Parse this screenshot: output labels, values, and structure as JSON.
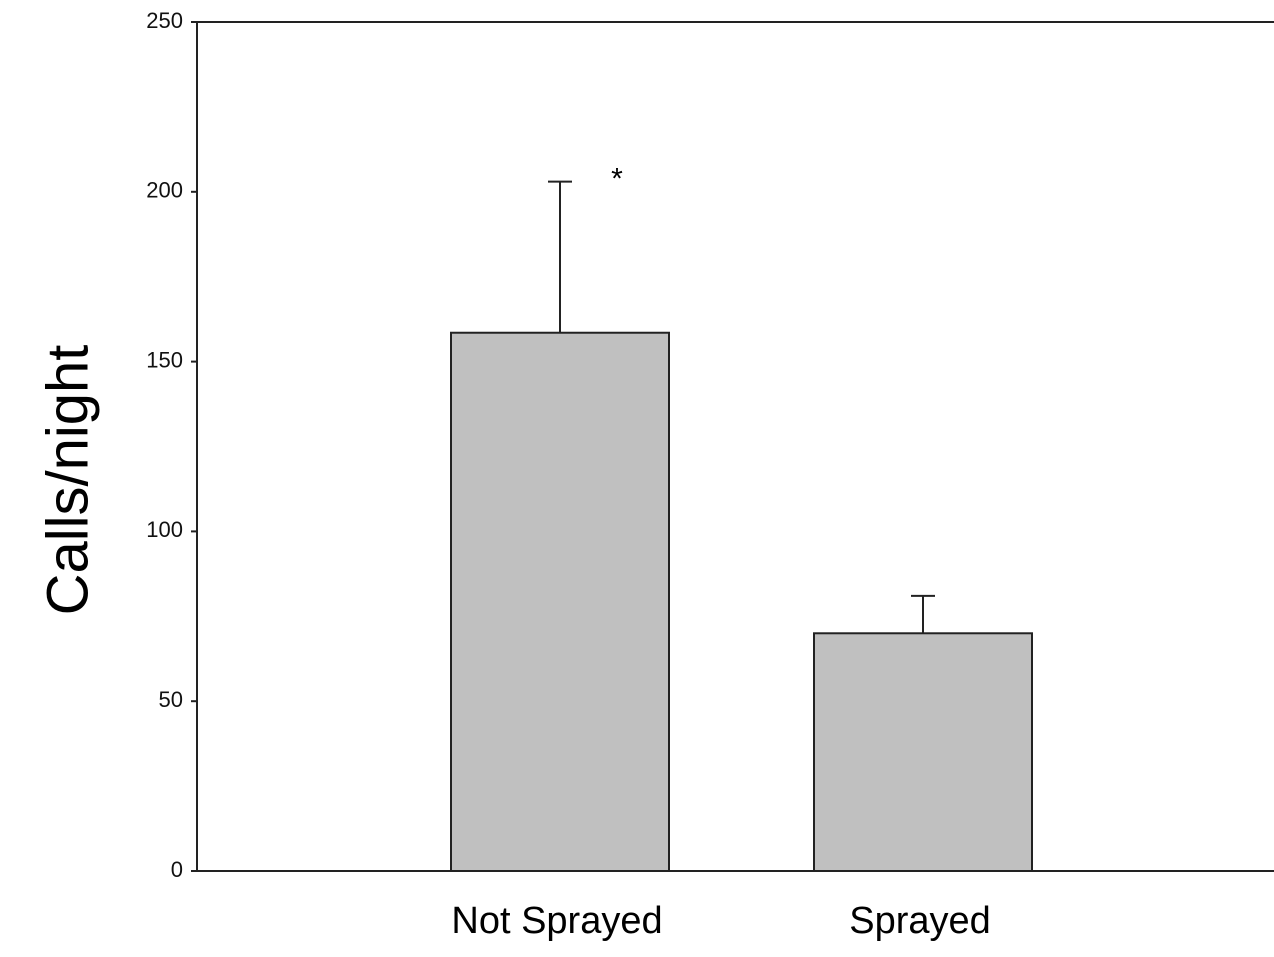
{
  "chart_data": {
    "type": "bar",
    "categories": [
      "Not Sprayed",
      "Sprayed"
    ],
    "values": [
      158.5,
      70
    ],
    "error_upper": [
      203,
      81
    ],
    "annotations": [
      {
        "category": "Not Sprayed",
        "text": "*"
      }
    ],
    "title": "",
    "xlabel": "",
    "ylabel": "Calls/night",
    "ylim": [
      0,
      250
    ],
    "yticks": [
      0,
      50,
      100,
      150,
      200,
      250
    ],
    "grid": false,
    "legend": "none",
    "colors": {
      "bar_fill": "#c0c0c0",
      "bar_stroke": "#222222",
      "axis": "#222222"
    }
  }
}
